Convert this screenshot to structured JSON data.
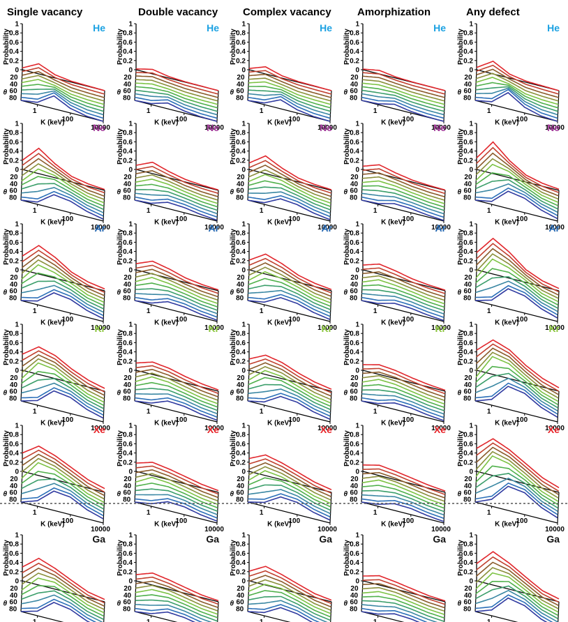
{
  "chart_data": {
    "type": "line",
    "columns": [
      "Single vacancy",
      "Double vacancy",
      "Complex vacancy",
      "Amorphization",
      "Any defect"
    ],
    "rows": [
      {
        "ion": "He",
        "color": "#1ba1e2"
      },
      {
        "ion": "Ne",
        "color": "#a23a9a"
      },
      {
        "ion": "Ar",
        "color": "#2165b0"
      },
      {
        "ion": "Kr",
        "color": "#8cc63f"
      },
      {
        "ion": "Xe",
        "color": "#e8262b"
      },
      {
        "ion": "Ga",
        "color": "#111111"
      }
    ],
    "ylabel": "Probability",
    "xlabel": "K (keV)",
    "zlabel": "θ",
    "yticks": [
      "0",
      "0.2",
      "0.4",
      "0.6",
      "0.8",
      "1"
    ],
    "xticks": [
      "1",
      "100",
      "10000"
    ],
    "ztick_labels": [
      "0",
      "20",
      "40",
      "60",
      "80"
    ],
    "ylim": [
      0,
      1
    ],
    "xlim": [
      0.1,
      10000
    ],
    "xscale": "log",
    "theta_values": [
      0,
      10,
      20,
      30,
      40,
      50,
      60,
      70,
      80,
      89
    ],
    "series_colors": [
      "#e1262c",
      "#c0402e",
      "#8a5a2a",
      "#8a8f3a",
      "#7cc243",
      "#4fb04a",
      "#3b9e6a",
      "#3a87a3",
      "#2b6fb8",
      "#2f3aa0"
    ],
    "curve_K": [
      0.1,
      1,
      10,
      100,
      1000,
      10000
    ],
    "curves": {
      "He": [
        {
          "theta": 0,
          "y": [
            0.04,
            0.22,
            0.07,
            0.02,
            0.01,
            0.0
          ]
        },
        {
          "theta": 40,
          "y": [
            0.02,
            0.18,
            0.14,
            0.04,
            0.01,
            0.0
          ]
        },
        {
          "theta": 80,
          "y": [
            0.0,
            0.05,
            0.28,
            0.1,
            0.02,
            0.0
          ]
        }
      ],
      "Ne": [
        {
          "theta": 0,
          "y": [
            0.2,
            0.55,
            0.3,
            0.12,
            0.05,
            0.02
          ]
        },
        {
          "theta": 40,
          "y": [
            0.05,
            0.4,
            0.35,
            0.2,
            0.08,
            0.03
          ]
        },
        {
          "theta": 80,
          "y": [
            0.0,
            0.05,
            0.3,
            0.25,
            0.12,
            0.04
          ]
        }
      ],
      "Ar": [
        {
          "theta": 0,
          "y": [
            0.3,
            0.62,
            0.45,
            0.22,
            0.1,
            0.04
          ]
        },
        {
          "theta": 40,
          "y": [
            0.1,
            0.5,
            0.42,
            0.28,
            0.12,
            0.05
          ]
        },
        {
          "theta": 80,
          "y": [
            0.0,
            0.08,
            0.35,
            0.3,
            0.15,
            0.06
          ]
        }
      ],
      "Kr": [
        {
          "theta": 0,
          "y": [
            0.35,
            0.6,
            0.5,
            0.3,
            0.15,
            0.06
          ]
        },
        {
          "theta": 40,
          "y": [
            0.12,
            0.55,
            0.5,
            0.32,
            0.15,
            0.06
          ]
        },
        {
          "theta": 80,
          "y": [
            0.0,
            0.1,
            0.4,
            0.35,
            0.18,
            0.08
          ]
        }
      ],
      "Xe": [
        {
          "theta": 0,
          "y": [
            0.4,
            0.64,
            0.52,
            0.35,
            0.18,
            0.08
          ]
        },
        {
          "theta": 40,
          "y": [
            0.15,
            0.58,
            0.52,
            0.36,
            0.18,
            0.08
          ]
        },
        {
          "theta": 80,
          "y": [
            0.0,
            0.12,
            0.42,
            0.38,
            0.2,
            0.09
          ]
        }
      ],
      "Ga": [
        {
          "theta": 0,
          "y": [
            0.3,
            0.58,
            0.45,
            0.28,
            0.12,
            0.05
          ]
        },
        {
          "theta": 40,
          "y": [
            0.1,
            0.45,
            0.45,
            0.3,
            0.14,
            0.06
          ]
        },
        {
          "theta": 80,
          "y": [
            0.0,
            0.1,
            0.38,
            0.32,
            0.16,
            0.07
          ]
        }
      ]
    }
  }
}
